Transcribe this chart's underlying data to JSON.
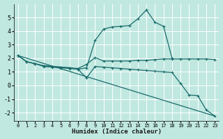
{
  "xlabel": "Humidex (Indice chaleur)",
  "bg_color": "#c0e8e0",
  "line_color": "#1a6b6b",
  "grid_color": "#ffffff",
  "xlim": [
    -0.5,
    23.5
  ],
  "ylim": [
    -2.6,
    6.0
  ],
  "xticks": [
    0,
    1,
    2,
    3,
    4,
    5,
    6,
    7,
    8,
    9,
    10,
    11,
    12,
    13,
    14,
    15,
    16,
    17,
    18,
    19,
    20,
    21,
    22,
    23
  ],
  "yticks": [
    -2,
    -1,
    0,
    1,
    2,
    3,
    4,
    5
  ],
  "lines": [
    {
      "x": [
        0,
        1,
        2,
        3,
        4,
        5,
        6,
        7,
        8,
        9,
        10,
        11,
        12,
        13,
        14,
        15,
        16,
        17,
        18
      ],
      "y": [
        2.2,
        1.75,
        1.6,
        1.4,
        1.35,
        1.3,
        1.25,
        1.2,
        1.3,
        3.3,
        4.15,
        4.3,
        4.35,
        4.4,
        4.9,
        5.55,
        4.65,
        4.35,
        2.0
      ]
    },
    {
      "x": [
        0,
        1,
        2,
        3,
        4,
        5,
        6,
        7,
        8,
        9,
        10,
        11,
        12,
        13,
        14,
        15,
        16,
        17,
        18,
        19,
        20,
        21,
        22,
        23
      ],
      "y": [
        2.2,
        1.75,
        1.6,
        1.45,
        1.4,
        1.35,
        1.3,
        1.25,
        1.55,
        2.05,
        1.8,
        1.8,
        1.8,
        1.8,
        1.85,
        1.85,
        1.9,
        1.95,
        1.95,
        1.95,
        1.95,
        1.95,
        1.95,
        1.9
      ]
    },
    {
      "x": [
        0,
        1,
        2,
        3,
        4,
        5,
        6,
        7,
        8,
        9,
        10,
        11,
        12,
        13,
        14,
        15,
        16,
        17,
        18,
        19,
        20,
        21,
        22,
        23
      ],
      "y": [
        2.2,
        1.75,
        1.6,
        1.45,
        1.4,
        1.35,
        1.3,
        1.2,
        0.55,
        1.4,
        1.35,
        1.3,
        1.25,
        1.2,
        1.15,
        1.1,
        1.05,
        1.0,
        0.95,
        0.15,
        -0.7,
        -0.75,
        -1.8,
        -2.25
      ]
    },
    {
      "x": [
        0,
        23
      ],
      "y": [
        2.2,
        -2.25
      ]
    }
  ]
}
